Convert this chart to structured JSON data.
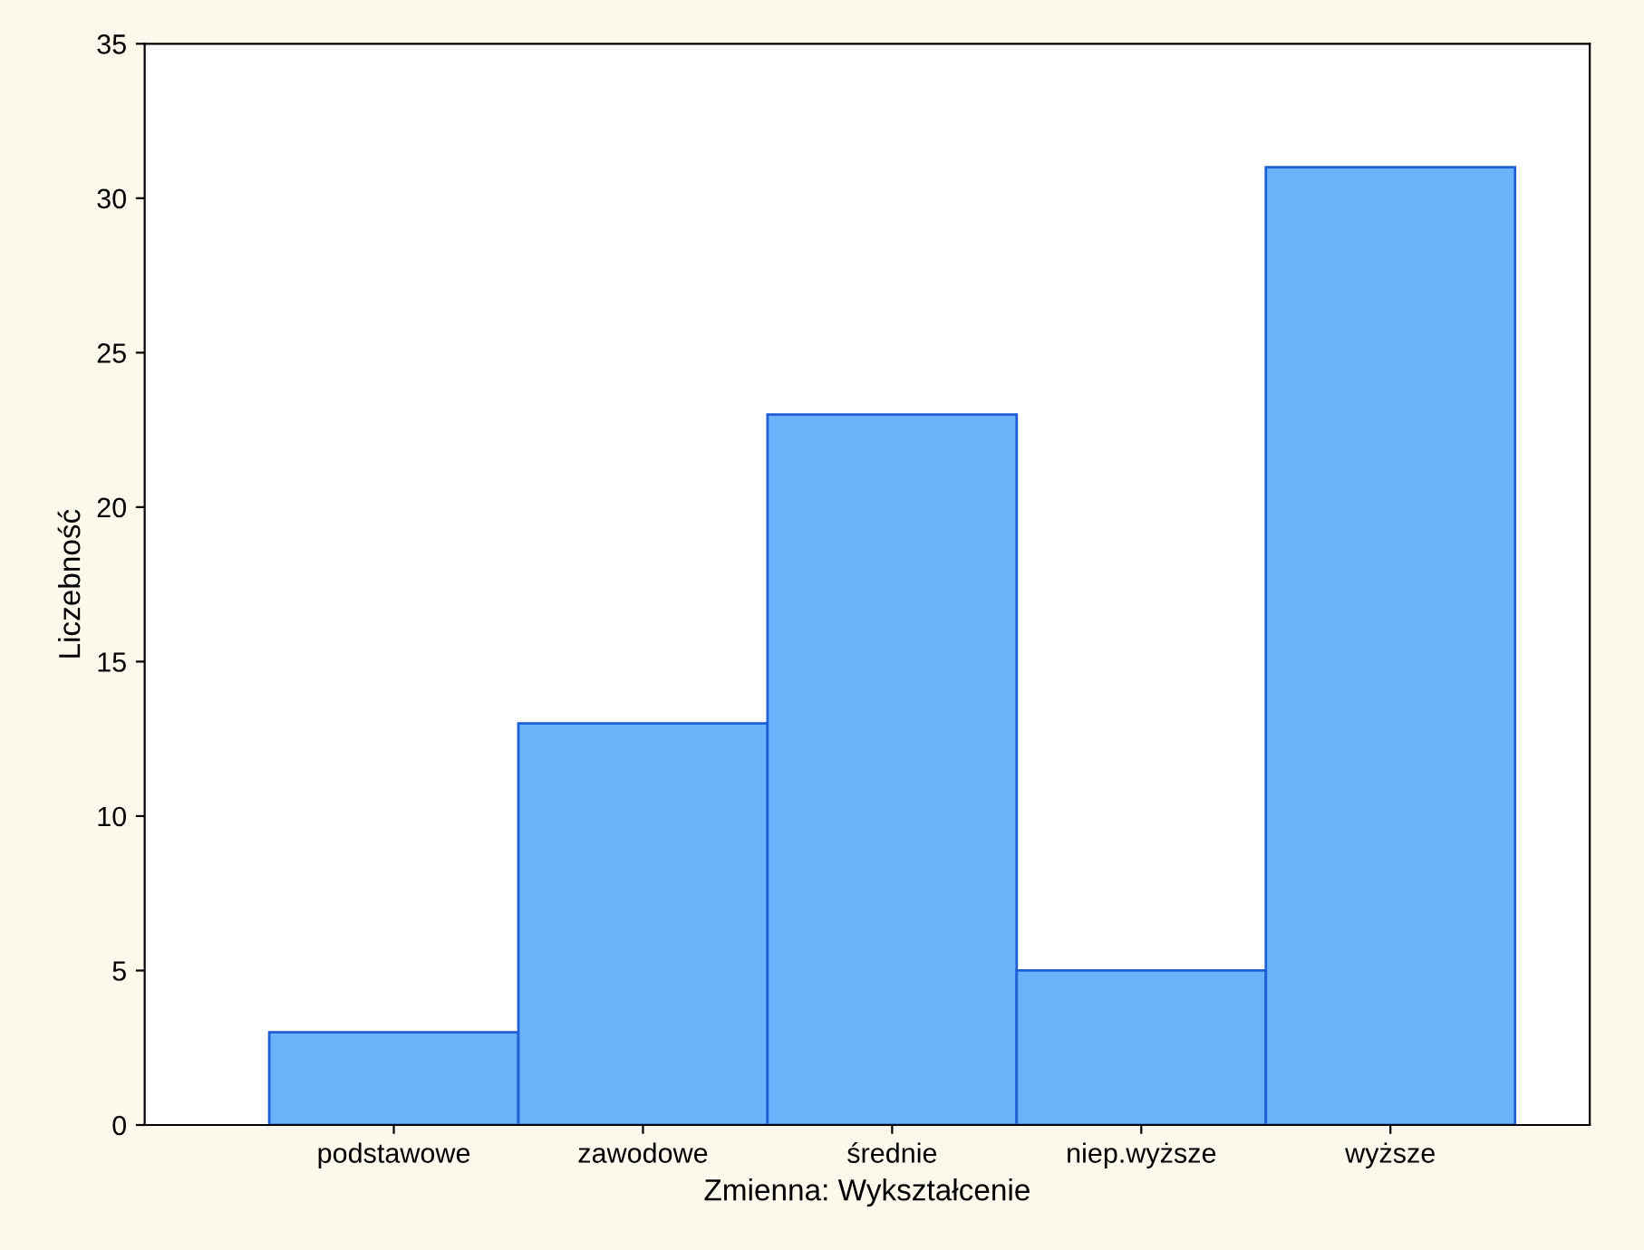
{
  "chart_data": {
    "type": "bar",
    "xlabel": "Zmienna: Wykształcenie",
    "ylabel": "Liczebność",
    "categories": [
      "podstawowe",
      "zawodowe",
      "średnie",
      "niep.wyższe",
      "wyższe"
    ],
    "values": [
      3,
      13,
      23,
      5,
      31
    ],
    "color": "#6cb2fb",
    "ylim": [
      0,
      35
    ],
    "yticks": [
      0,
      5,
      10,
      15,
      20,
      25,
      30,
      35
    ],
    "grid": false,
    "legend": false
  }
}
